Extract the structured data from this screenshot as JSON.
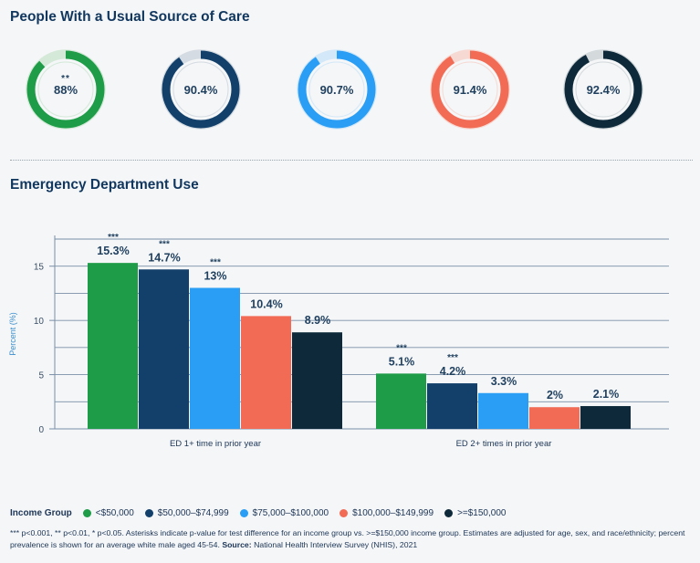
{
  "section1": {
    "title": "People With a Usual Source of Care",
    "donuts": [
      {
        "label": "88%",
        "value": 88,
        "stars": "**",
        "color": "#1e9c48",
        "track": "#d4e9d8"
      },
      {
        "label": "90.4%",
        "value": 90.4,
        "stars": "",
        "color": "#12406b",
        "track": "#d5dbe2"
      },
      {
        "label": "90.7%",
        "value": 90.7,
        "stars": "",
        "color": "#2a9df4",
        "track": "#d3e8f8"
      },
      {
        "label": "91.4%",
        "value": 91.4,
        "stars": "",
        "color": "#f26b55",
        "track": "#f7d9d3"
      },
      {
        "label": "92.4%",
        "value": 92.4,
        "stars": "",
        "color": "#0e2a3a",
        "track": "#d4d9dc"
      }
    ]
  },
  "section2": {
    "title": "Emergency Department Use"
  },
  "chart_data": {
    "type": "bar",
    "ylabel": "Percent (%)",
    "ylim": [
      0,
      17.5
    ],
    "yticks": [
      0,
      5,
      10,
      15
    ],
    "grid": true,
    "categories": [
      "ED 1+ time in prior year",
      "ED 2+ times in prior year"
    ],
    "series": [
      {
        "name": "<$50,000",
        "color": "#1e9c48",
        "values": [
          15.3,
          5.1
        ],
        "labels": [
          "15.3%",
          "5.1%"
        ],
        "stars": [
          "***",
          "***"
        ]
      },
      {
        "name": "$50,000–$74,999",
        "color": "#12406b",
        "values": [
          14.7,
          4.2
        ],
        "labels": [
          "14.7%",
          "4.2%"
        ],
        "stars": [
          "***",
          "***"
        ]
      },
      {
        "name": "$75,000–$100,000",
        "color": "#2a9df4",
        "values": [
          13,
          3.3
        ],
        "labels": [
          "13%",
          "3.3%"
        ],
        "stars": [
          "***",
          ""
        ]
      },
      {
        "name": "$100,000–$149,999",
        "color": "#f26b55",
        "values": [
          10.4,
          2
        ],
        "labels": [
          "10.4%",
          "2%"
        ],
        "stars": [
          "",
          ""
        ]
      },
      {
        "name": ">=$150,000",
        "color": "#0e2a3a",
        "values": [
          8.9,
          2.1
        ],
        "labels": [
          "8.9%",
          "2.1%"
        ],
        "stars": [
          "",
          ""
        ]
      }
    ]
  },
  "legend": {
    "title": "Income Group",
    "items": [
      {
        "label": "<$50,000",
        "color": "#1e9c48"
      },
      {
        "label": "$50,000–$74,999",
        "color": "#12406b"
      },
      {
        "label": "$75,000–$100,000",
        "color": "#2a9df4"
      },
      {
        "label": "$100,000–$149,999",
        "color": "#f26b55"
      },
      {
        "label": ">=$150,000",
        "color": "#0e2a3a"
      }
    ]
  },
  "footnote": {
    "text": "*** p<0.001, ** p<0.01, * p<0.05. Asterisks indicate p-value for test difference for an income group vs. >=$150,000 income group. Estimates are adjusted for age, sex, and race/ethnicity; percent prevalence is shown for an average white male aged 45-54.",
    "source_label": "Source:",
    "source_text": "National Health Interview Survey (NHIS), 2021"
  }
}
